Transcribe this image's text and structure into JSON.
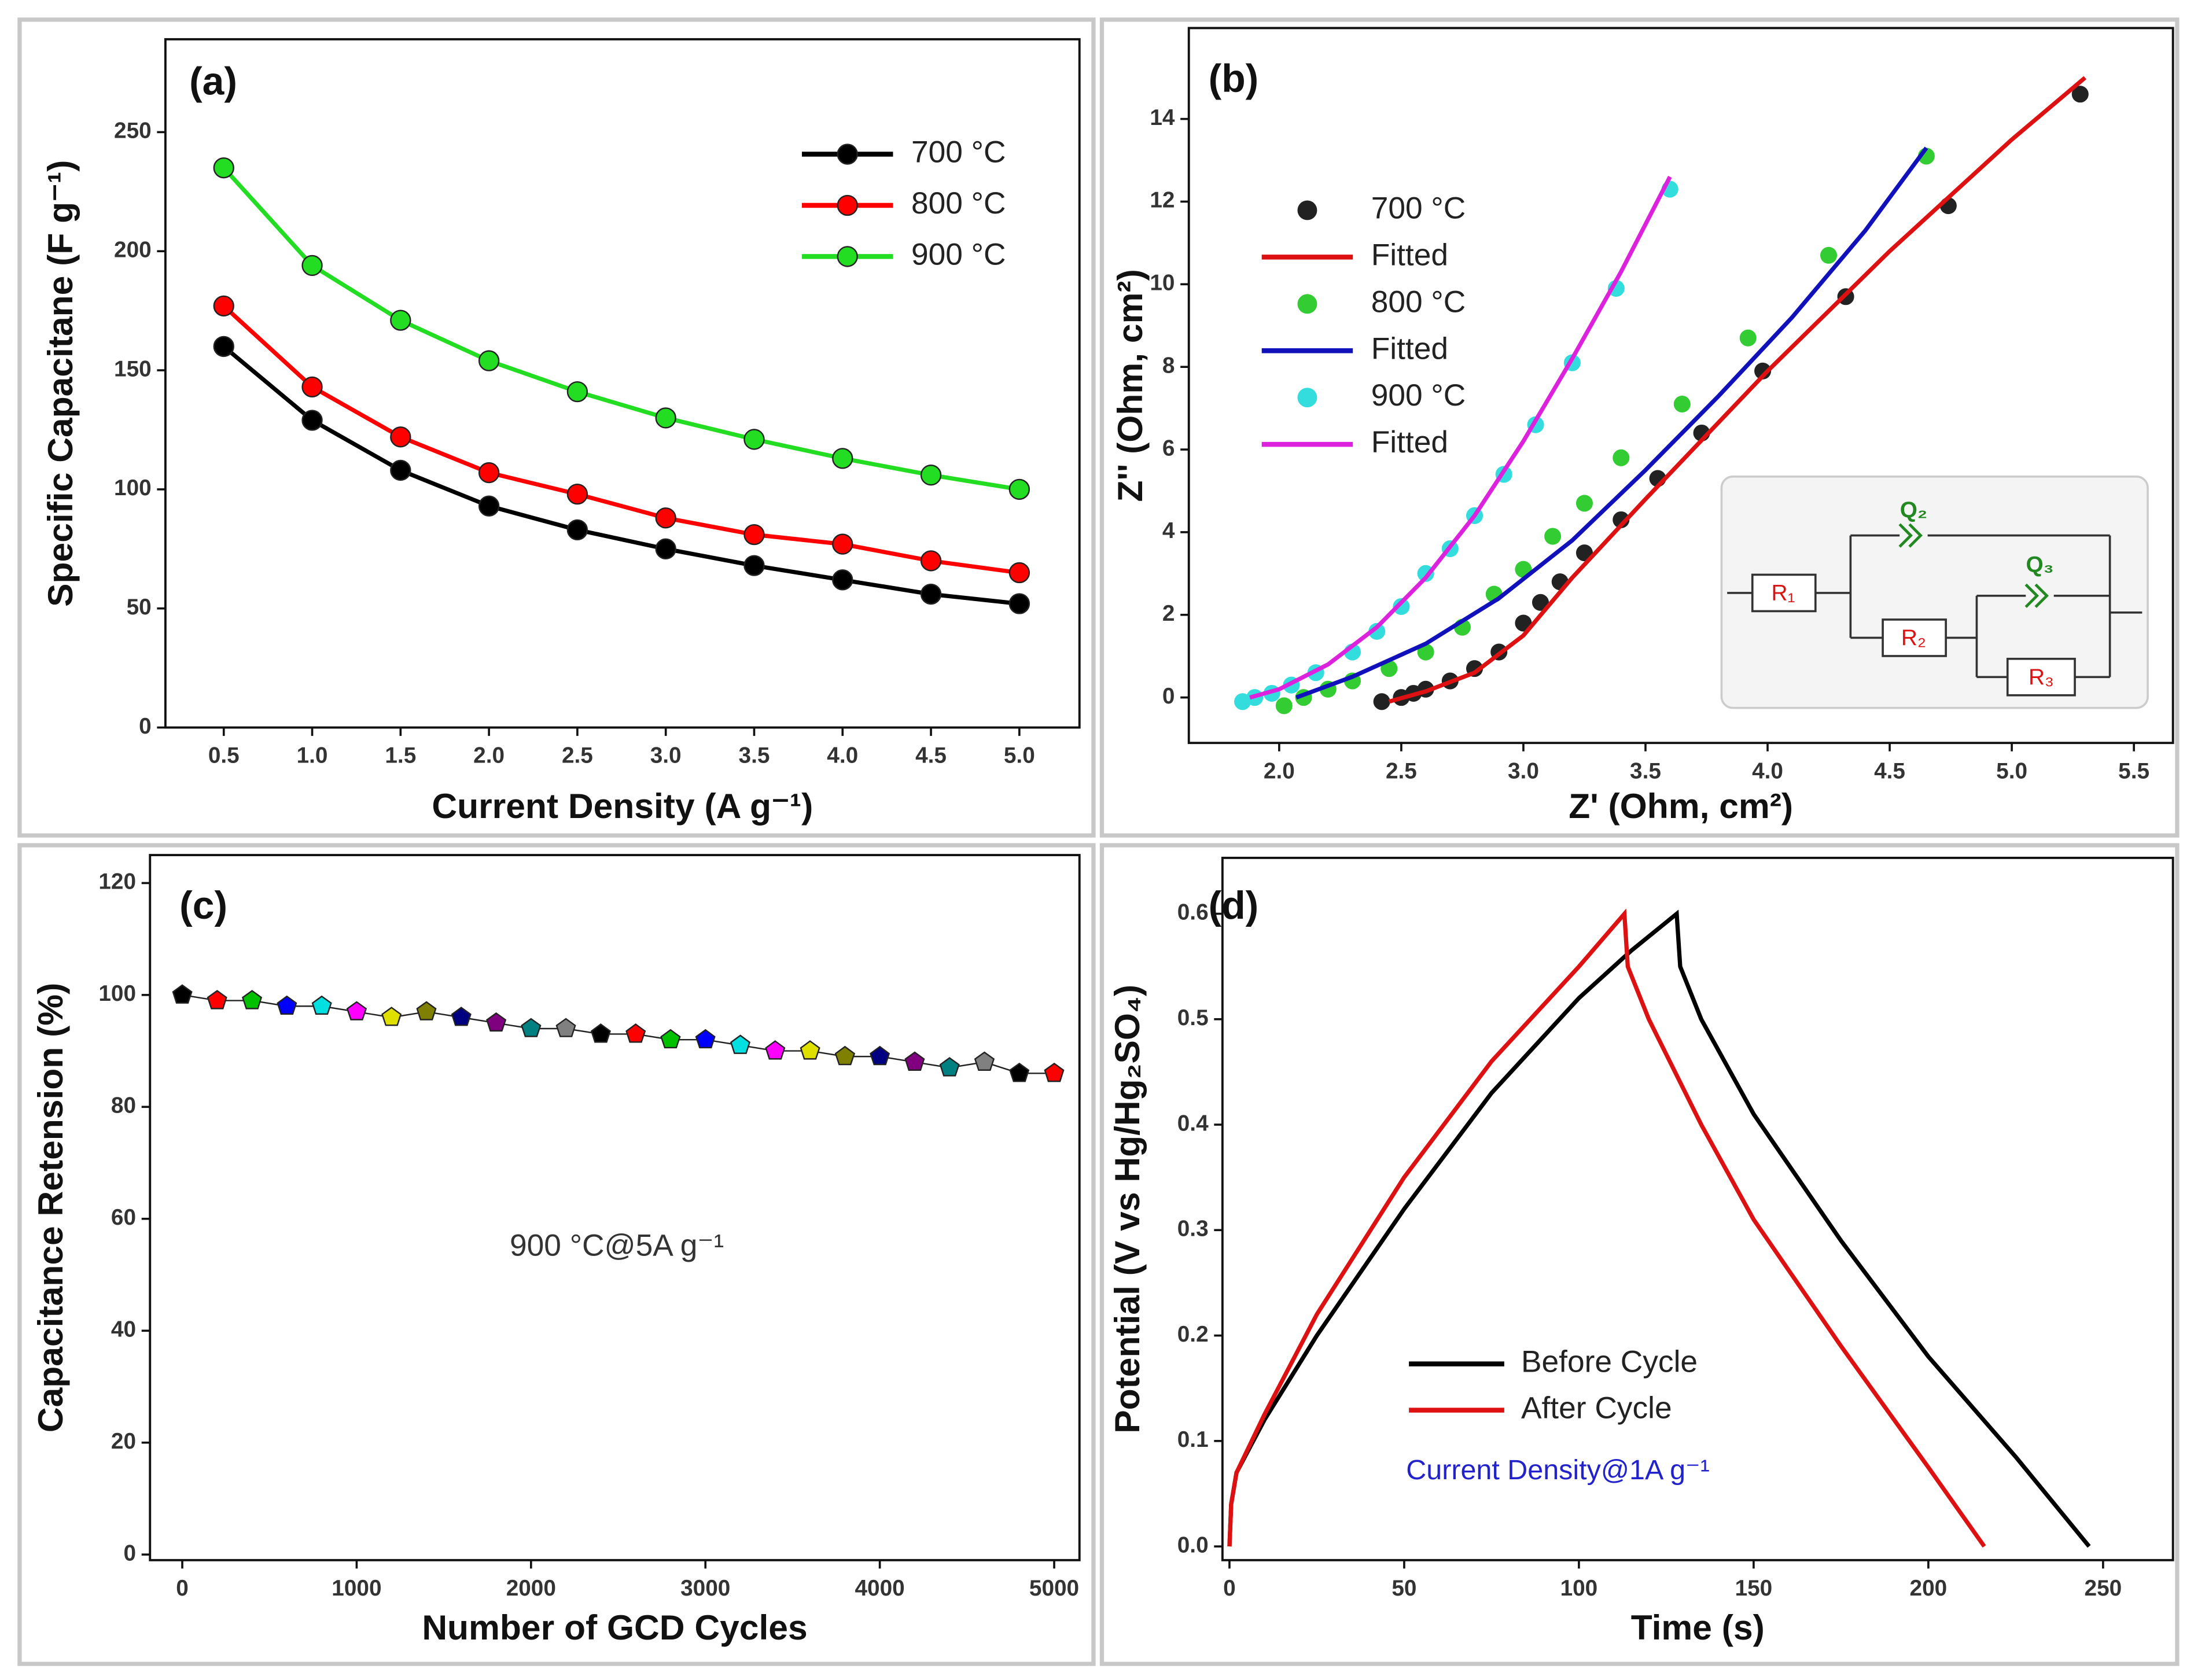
{
  "chart_data": [
    {
      "type": "line",
      "title": "(a)",
      "x_label": "Current Density (A g⁻¹)",
      "y_label": "Specific Capacitane (F g⁻¹)",
      "x": [
        0.5,
        1.0,
        1.5,
        2.0,
        2.5,
        3.0,
        3.5,
        4.0,
        4.5,
        5.0
      ],
      "series": [
        {
          "name": "700 °C",
          "color": "#000000",
          "marker": true,
          "line": true,
          "values": [
            160,
            129,
            108,
            93,
            83,
            75,
            68,
            62,
            56,
            52
          ]
        },
        {
          "name": "800 °C",
          "color": "#ff0000",
          "marker": true,
          "line": true,
          "values": [
            177,
            143,
            122,
            107,
            98,
            88,
            81,
            77,
            70,
            65
          ]
        },
        {
          "name": "900 °C",
          "color": "#22dd22",
          "marker": true,
          "line": true,
          "values": [
            235,
            194,
            171,
            154,
            141,
            130,
            121,
            113,
            106,
            100
          ]
        }
      ],
      "xlim": [
        0.17,
        5.34
      ],
      "ylim": [
        0,
        289
      ],
      "xticks": [
        0.5,
        {
          "value": 1,
          "label": "1.0"
        },
        1.5,
        {
          "value": 2,
          "label": "2.0"
        },
        2.5,
        {
          "value": 3,
          "label": "3.0"
        },
        3.5,
        {
          "value": 4,
          "label": "4.0"
        },
        4.5,
        {
          "value": 5,
          "label": "5.0"
        }
      ],
      "yticks": [
        0,
        50,
        100,
        150,
        200,
        250
      ],
      "legend": "upper right"
    },
    {
      "type": "scatter",
      "title": "(b)",
      "x_label": "Z' (Ohm, cm²)",
      "y_label": "Z'' (Ohm, cm²)",
      "series": [
        {
          "name": "700 °C",
          "color": "#222222",
          "marker": true,
          "line": false,
          "x": [
            2.42,
            2.5,
            2.55,
            2.6,
            2.7,
            2.8,
            2.9,
            3.0,
            3.07,
            3.15,
            3.25,
            3.4,
            3.55,
            3.73,
            3.98,
            4.32,
            4.74,
            5.28
          ],
          "values": [
            -0.1,
            0,
            0.1,
            0.2,
            0.4,
            0.7,
            1.1,
            1.8,
            2.3,
            2.8,
            3.5,
            4.3,
            5.3,
            6.4,
            7.9,
            9.7,
            11.9,
            14.6
          ]
        },
        {
          "name": "Fitted",
          "color": "#dd1111",
          "marker": false,
          "line": true,
          "x": [
            2.45,
            2.6,
            2.8,
            3.0,
            3.2,
            3.5,
            4.0,
            4.5,
            5.0,
            5.3
          ],
          "values": [
            -0.1,
            0.15,
            0.6,
            1.5,
            2.9,
            4.8,
            7.9,
            10.8,
            13.5,
            15.0
          ]
        },
        {
          "name": "800 °C",
          "color": "#33cc33",
          "marker": true,
          "line": false,
          "x": [
            2.02,
            2.1,
            2.2,
            2.3,
            2.45,
            2.6,
            2.75,
            2.88,
            3.0,
            3.12,
            3.25,
            3.4,
            3.65,
            3.92,
            4.25,
            4.65
          ],
          "values": [
            -0.2,
            0,
            0.2,
            0.4,
            0.7,
            1.1,
            1.7,
            2.5,
            3.1,
            3.9,
            4.7,
            5.8,
            7.1,
            8.7,
            10.7,
            13.1
          ]
        },
        {
          "name": "Fitted",
          "color": "#1111bb",
          "marker": false,
          "line": true,
          "x": [
            2.07,
            2.3,
            2.6,
            2.9,
            3.2,
            3.5,
            3.8,
            4.1,
            4.4,
            4.65
          ],
          "values": [
            0,
            0.5,
            1.3,
            2.4,
            3.8,
            5.5,
            7.3,
            9.2,
            11.3,
            13.3
          ]
        },
        {
          "name": "900 °C",
          "color": "#33dddd",
          "marker": true,
          "line": false,
          "x": [
            1.85,
            1.9,
            1.97,
            2.05,
            2.15,
            2.3,
            2.4,
            2.5,
            2.6,
            2.7,
            2.8,
            2.92,
            3.05,
            3.2,
            3.38,
            3.6
          ],
          "values": [
            -0.1,
            0,
            0.1,
            0.3,
            0.6,
            1.1,
            1.6,
            2.2,
            3.0,
            3.6,
            4.4,
            5.4,
            6.6,
            8.1,
            9.9,
            12.3
          ]
        },
        {
          "name": "Fitted",
          "color": "#dd22dd",
          "marker": false,
          "line": true,
          "x": [
            1.88,
            2.0,
            2.2,
            2.4,
            2.6,
            2.8,
            3.0,
            3.2,
            3.4,
            3.6
          ],
          "values": [
            0,
            0.2,
            0.8,
            1.7,
            2.9,
            4.4,
            6.2,
            8.2,
            10.3,
            12.6
          ]
        }
      ],
      "xlim": [
        1.63,
        5.66
      ],
      "ylim": [
        -1.1,
        16.2
      ],
      "xticks": [
        {
          "value": 2,
          "label": "2.0"
        },
        2.5,
        {
          "value": 3,
          "label": "3.0"
        },
        3.5,
        {
          "value": 4,
          "label": "4.0"
        },
        4.5,
        {
          "value": 5,
          "label": "5.0"
        },
        5.5
      ],
      "yticks": [
        0,
        2,
        4,
        6,
        8,
        10,
        12,
        14
      ],
      "legend": "upper left",
      "annotations": [
        "R₁",
        "Q₂",
        "R₂",
        "Q₃",
        "R₃"
      ]
    },
    {
      "type": "scatter",
      "title": "(c)",
      "x_label": "Number of GCD Cycles",
      "y_label": "Capacitance Retension (%)",
      "x": [
        0,
        200,
        400,
        600,
        800,
        1000,
        1200,
        1400,
        1600,
        1800,
        2000,
        2200,
        2400,
        2600,
        2800,
        3000,
        3200,
        3400,
        3600,
        3800,
        4000,
        4200,
        4400,
        4600,
        4800,
        5000
      ],
      "series": [
        {
          "color": "#000000",
          "marker": true,
          "line": true,
          "colors": [
            "#000000",
            "#ff0000",
            "#00c000",
            "#0000ff",
            "#00e0e0",
            "#ff00ff",
            "#e0e000",
            "#808000",
            "#000080",
            "#800080",
            "#008080",
            "#808080",
            "#000000",
            "#ff0000",
            "#00c000",
            "#0000ff",
            "#00e0e0",
            "#ff00ff",
            "#e0e000",
            "#808000",
            "#000080",
            "#800080",
            "#008080",
            "#808080",
            "#000000",
            "#ff0000"
          ],
          "values": [
            100,
            99,
            99,
            98,
            98,
            97,
            96,
            97,
            96,
            95,
            94,
            94,
            93,
            93,
            92,
            92,
            91,
            90,
            90,
            89,
            89,
            88,
            87,
            88,
            86,
            86
          ]
        }
      ],
      "xlim": [
        -185,
        5145
      ],
      "ylim": [
        -1,
        125
      ],
      "xticks": [
        0,
        1000,
        2000,
        3000,
        4000,
        5000
      ],
      "yticks": [
        0,
        20,
        40,
        60,
        80,
        100,
        120
      ],
      "annotations": [
        "900 °C@5A g⁻¹"
      ]
    },
    {
      "type": "line",
      "title": "(d)",
      "x_label": "Time (s)",
      "y_label": "Potential (V vs Hg/Hg₂SO₄)",
      "series": [
        {
          "name": "Before Cycle",
          "color": "#000000",
          "marker": false,
          "line": true,
          "x": [
            0,
            0.5,
            2,
            10,
            25,
            50,
            75,
            100,
            115,
            128,
            129,
            135,
            150,
            175,
            200,
            225,
            246
          ],
          "values": [
            0,
            0.04,
            0.07,
            0.12,
            0.2,
            0.32,
            0.43,
            0.52,
            0.565,
            0.6,
            0.55,
            0.5,
            0.41,
            0.29,
            0.18,
            0.085,
            0
          ]
        },
        {
          "name": "After Cycle",
          "color": "#dd1111",
          "marker": false,
          "line": true,
          "x": [
            0,
            0.5,
            2,
            10,
            25,
            50,
            75,
            100,
            113,
            114,
            120,
            135,
            150,
            175,
            200,
            216
          ],
          "values": [
            0,
            0.04,
            0.07,
            0.125,
            0.22,
            0.35,
            0.46,
            0.55,
            0.6,
            0.55,
            0.5,
            0.4,
            0.31,
            0.19,
            0.075,
            0
          ]
        }
      ],
      "xlim": [
        -2,
        270
      ],
      "ylim": [
        -0.013,
        0.653
      ],
      "xticks": [
        0,
        50,
        100,
        150,
        200,
        250
      ],
      "yticks": [
        {
          "value": 0,
          "label": "0.0"
        },
        0.1,
        0.2,
        0.3,
        0.4,
        0.5,
        0.6
      ],
      "legend": "lower center",
      "annotations": [
        "Current Density@1A g⁻¹"
      ]
    }
  ]
}
